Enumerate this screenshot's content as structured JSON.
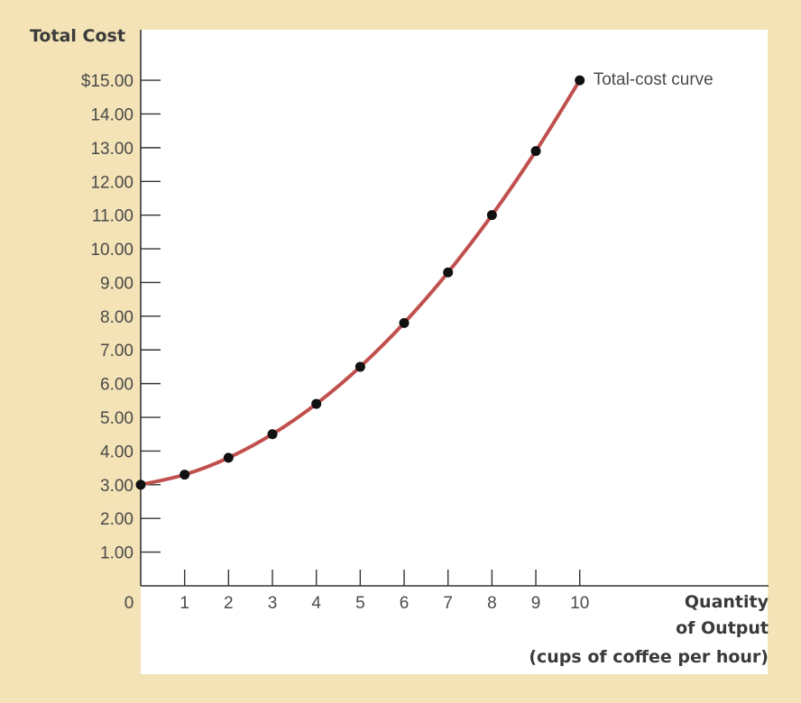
{
  "chart_data": {
    "type": "line",
    "title": "",
    "ylabel": "Total Cost",
    "xlabel_lines": [
      "Quantity",
      "of Output",
      "(cups of coffee per hour)"
    ],
    "x": [
      0,
      1,
      2,
      3,
      4,
      5,
      6,
      7,
      8,
      9,
      10
    ],
    "series": [
      {
        "values": [
          3.0,
          3.3,
          3.8,
          4.5,
          5.4,
          6.5,
          7.8,
          9.3,
          11.0,
          12.9,
          15.0
        ]
      }
    ],
    "annotation": "Total-cost curve",
    "y_tick_labels": [
      "1.00",
      "2.00",
      "3.00",
      "4.00",
      "5.00",
      "6.00",
      "7.00",
      "8.00",
      "9.00",
      "10.00",
      "11.00",
      "12.00",
      "13.00",
      "14.00",
      "$15.00"
    ],
    "y_ticks": [
      1,
      2,
      3,
      4,
      5,
      6,
      7,
      8,
      9,
      10,
      11,
      12,
      13,
      14,
      15
    ],
    "x_tick_labels": [
      "0",
      "1",
      "2",
      "3",
      "4",
      "5",
      "6",
      "7",
      "8",
      "9",
      "10"
    ],
    "x_ticks": [
      0,
      1,
      2,
      3,
      4,
      5,
      6,
      7,
      8,
      9,
      10
    ],
    "xlim": [
      0,
      14.3
    ],
    "ylim": [
      0,
      16.5
    ],
    "grid": false,
    "colors": {
      "background": "#f3e3b6",
      "plot_area": "#ffffff",
      "line": "#c0504d",
      "marker": "#111111",
      "axis": "#333333"
    }
  }
}
